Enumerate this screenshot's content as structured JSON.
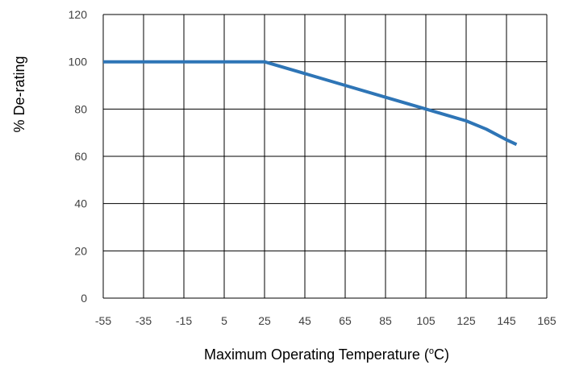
{
  "chart_data": {
    "type": "line",
    "title": "",
    "xlabel": "Maximum  Operating Temperature (",
    "xlabel_unit_superscript": "o",
    "xlabel_unit_suffix": "C)",
    "ylabel": "% De-rating",
    "xlim": [
      -55,
      165
    ],
    "ylim": [
      0,
      120
    ],
    "x_ticks": [
      -55,
      -35,
      -15,
      5,
      25,
      45,
      65,
      85,
      105,
      125,
      145,
      165
    ],
    "y_ticks": [
      0,
      20,
      40,
      60,
      80,
      100,
      120
    ],
    "grid": true,
    "legend": "none",
    "series": [
      {
        "color": "#2e75b6",
        "x": [
          -55,
          25,
          45,
          65,
          85,
          105,
          115,
          125,
          135,
          145,
          150
        ],
        "y": [
          100,
          100,
          95,
          90,
          85,
          80,
          77.5,
          75,
          71.5,
          67,
          65
        ]
      }
    ]
  }
}
